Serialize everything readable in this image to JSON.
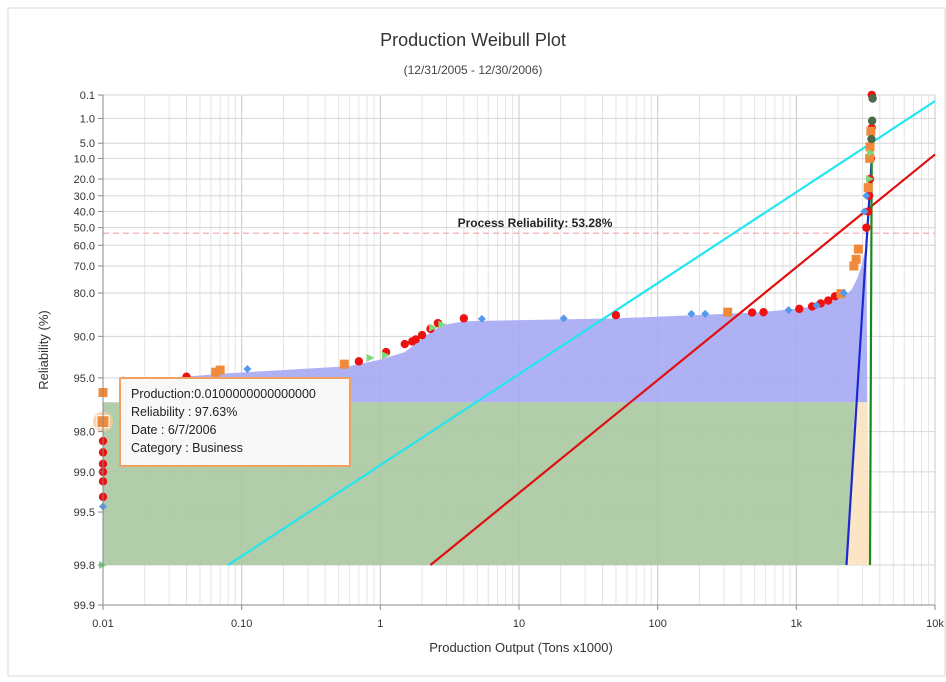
{
  "chart_data": {
    "type": "scatter",
    "title": "Production Weibull Plot",
    "subtitle": "(12/31/2005 - 12/30/2006)",
    "xlabel": "Production Output (Tons x1000)",
    "ylabel": "Reliability (%)",
    "x_scale": "log",
    "xlim": [
      0.01,
      10000
    ],
    "y_scale": "weibull",
    "ylim": [
      0.1,
      99.9
    ],
    "grid": true,
    "legend": "none",
    "x_ticks": [
      {
        "value": 0.01,
        "label": "0.01"
      },
      {
        "value": 0.1,
        "label": "0.10"
      },
      {
        "value": 1,
        "label": "1"
      },
      {
        "value": 10,
        "label": "10"
      },
      {
        "value": 100,
        "label": "100"
      },
      {
        "value": 1000,
        "label": "1k"
      },
      {
        "value": 10000,
        "label": "10k"
      }
    ],
    "y_ticks": [
      {
        "value": 0.1,
        "label": "0.1"
      },
      {
        "value": 1.0,
        "label": "1.0"
      },
      {
        "value": 5.0,
        "label": "5.0"
      },
      {
        "value": 10.0,
        "label": "10.0"
      },
      {
        "value": 20.0,
        "label": "20.0"
      },
      {
        "value": 30.0,
        "label": "30.0"
      },
      {
        "value": 40.0,
        "label": "40.0"
      },
      {
        "value": 50.0,
        "label": "50.0"
      },
      {
        "value": 60.0,
        "label": "60.0"
      },
      {
        "value": 70.0,
        "label": "70.0"
      },
      {
        "value": 80.0,
        "label": "80.0"
      },
      {
        "value": 90.0,
        "label": "90.0"
      },
      {
        "value": 95.0,
        "label": "95.0"
      },
      {
        "value": 98.0,
        "label": "98.0"
      },
      {
        "value": 99.0,
        "label": "99.0"
      },
      {
        "value": 99.5,
        "label": "99.5"
      },
      {
        "value": 99.8,
        "label": "99.8"
      },
      {
        "value": 99.9,
        "label": "99.9"
      }
    ],
    "process_reliability": {
      "label": "Process Reliability: 53.28%",
      "value": 53.28,
      "color": "#f4a0a8"
    },
    "areas": [
      {
        "color": "#a8c8a0",
        "points": [
          [
            0.01,
            96.7
          ],
          [
            0.01,
            99.8
          ],
          [
            2300,
            99.8
          ],
          [
            2650,
            96.7
          ]
        ]
      },
      {
        "color": "#a6a8f4",
        "points": [
          [
            0.014,
            95.3
          ],
          [
            0.08,
            94.6
          ],
          [
            0.6,
            93.9
          ],
          [
            1.0,
            93.2
          ],
          [
            1.5,
            92.3
          ],
          [
            2.3,
            89.3
          ],
          [
            2.8,
            88.0
          ],
          [
            4,
            87.2
          ],
          [
            50,
            86.6
          ],
          [
            500,
            85.3
          ],
          [
            1000,
            84.4
          ],
          [
            1300,
            83.8
          ],
          [
            1800,
            82.4
          ],
          [
            2200,
            81.0
          ],
          [
            2500,
            79.0
          ],
          [
            2750,
            75.0
          ],
          [
            2950,
            70.0
          ],
          [
            3200,
            60.0
          ],
          [
            3250,
            96.7
          ],
          [
            0.014,
            96.7
          ]
        ]
      },
      {
        "color": "#fbe2bf",
        "points": [
          [
            2650,
            96.7
          ],
          [
            3250,
            96.7
          ],
          [
            3400,
            99.8
          ],
          [
            2300,
            99.8
          ]
        ]
      }
    ],
    "lines": [
      {
        "color": "#22e6f0",
        "points": [
          [
            0.08,
            99.8
          ],
          [
            10000,
            0.2
          ]
        ]
      },
      {
        "color": "#e01010",
        "points": [
          [
            2.3,
            99.8
          ],
          [
            10000,
            8.5
          ]
        ]
      },
      {
        "color": "#1a2ad0",
        "points": [
          [
            2300,
            99.8
          ],
          [
            3500,
            10
          ]
        ]
      },
      {
        "color": "#1a8a1a",
        "points": [
          [
            3400,
            99.8
          ],
          [
            3500,
            5
          ]
        ]
      }
    ],
    "series": [
      {
        "color": "#ee1111",
        "marker": "circle",
        "points": [
          [
            0.01,
            98.3
          ],
          [
            0.01,
            98.6
          ],
          [
            0.01,
            98.85
          ],
          [
            0.01,
            99.0
          ],
          [
            0.01,
            99.15
          ],
          [
            0.01,
            99.35
          ],
          [
            0.04,
            94.9
          ],
          [
            0.7,
            93.4
          ],
          [
            1.1,
            92.3
          ],
          [
            1.5,
            91.2
          ],
          [
            1.7,
            90.8
          ],
          [
            1.8,
            90.5
          ],
          [
            2.0,
            89.8
          ],
          [
            2.3,
            88.7
          ],
          [
            2.6,
            87.6
          ],
          [
            4.0,
            86.6
          ],
          [
            50,
            85.9
          ],
          [
            480,
            85.3
          ],
          [
            580,
            85.2
          ],
          [
            1050,
            84.4
          ],
          [
            1300,
            83.8
          ],
          [
            1500,
            83.0
          ],
          [
            1700,
            82.2
          ],
          [
            1900,
            81.0
          ],
          [
            3500,
            0.1
          ],
          [
            3500,
            2
          ],
          [
            3450,
            10
          ],
          [
            3400,
            20
          ],
          [
            3350,
            30
          ],
          [
            3300,
            40
          ],
          [
            3200,
            50
          ]
        ]
      },
      {
        "color": "#f08a3a",
        "marker": "square",
        "points": [
          [
            0.01,
            96.1
          ],
          [
            0.065,
            94.5
          ],
          [
            0.07,
            94.3
          ],
          [
            0.55,
            93.7
          ],
          [
            320,
            85.2
          ],
          [
            2100,
            80.2
          ],
          [
            2600,
            70.0
          ],
          [
            2700,
            67.0
          ],
          [
            2800,
            62.0
          ],
          [
            3450,
            2.5
          ],
          [
            3400,
            6
          ],
          [
            3380,
            10
          ],
          [
            3300,
            25
          ]
        ]
      },
      {
        "color": "#5599ee",
        "marker": "diamond",
        "points": [
          [
            0.01,
            99.45
          ],
          [
            0.014,
            95.2
          ],
          [
            0.11,
            94.2
          ],
          [
            5.4,
            86.7
          ],
          [
            21,
            86.6
          ],
          [
            175,
            85.6
          ],
          [
            220,
            85.6
          ],
          [
            880,
            84.7
          ],
          [
            1400,
            83.5
          ],
          [
            2200,
            80.0
          ],
          [
            3100,
            40
          ],
          [
            3200,
            30
          ]
        ]
      },
      {
        "color": "#7ed87e",
        "marker": "triangle",
        "points": [
          [
            0.01,
            99.8
          ],
          [
            0.85,
            93.0
          ],
          [
            1.1,
            92.7
          ],
          [
            2.4,
            88.5
          ],
          [
            2.8,
            87.9
          ],
          [
            3400,
            20
          ],
          [
            3450,
            8
          ]
        ]
      },
      {
        "color": "#4a6a4a",
        "marker": "circle",
        "points": [
          [
            3550,
            0.15
          ],
          [
            3520,
            1.2
          ],
          [
            3480,
            4
          ]
        ]
      }
    ],
    "tooltip": {
      "production": "Production:0.0100000000000000",
      "reliability": "Reliability : 97.63%",
      "date": "Date : 6/7/2006",
      "category": "Category : Business"
    }
  }
}
